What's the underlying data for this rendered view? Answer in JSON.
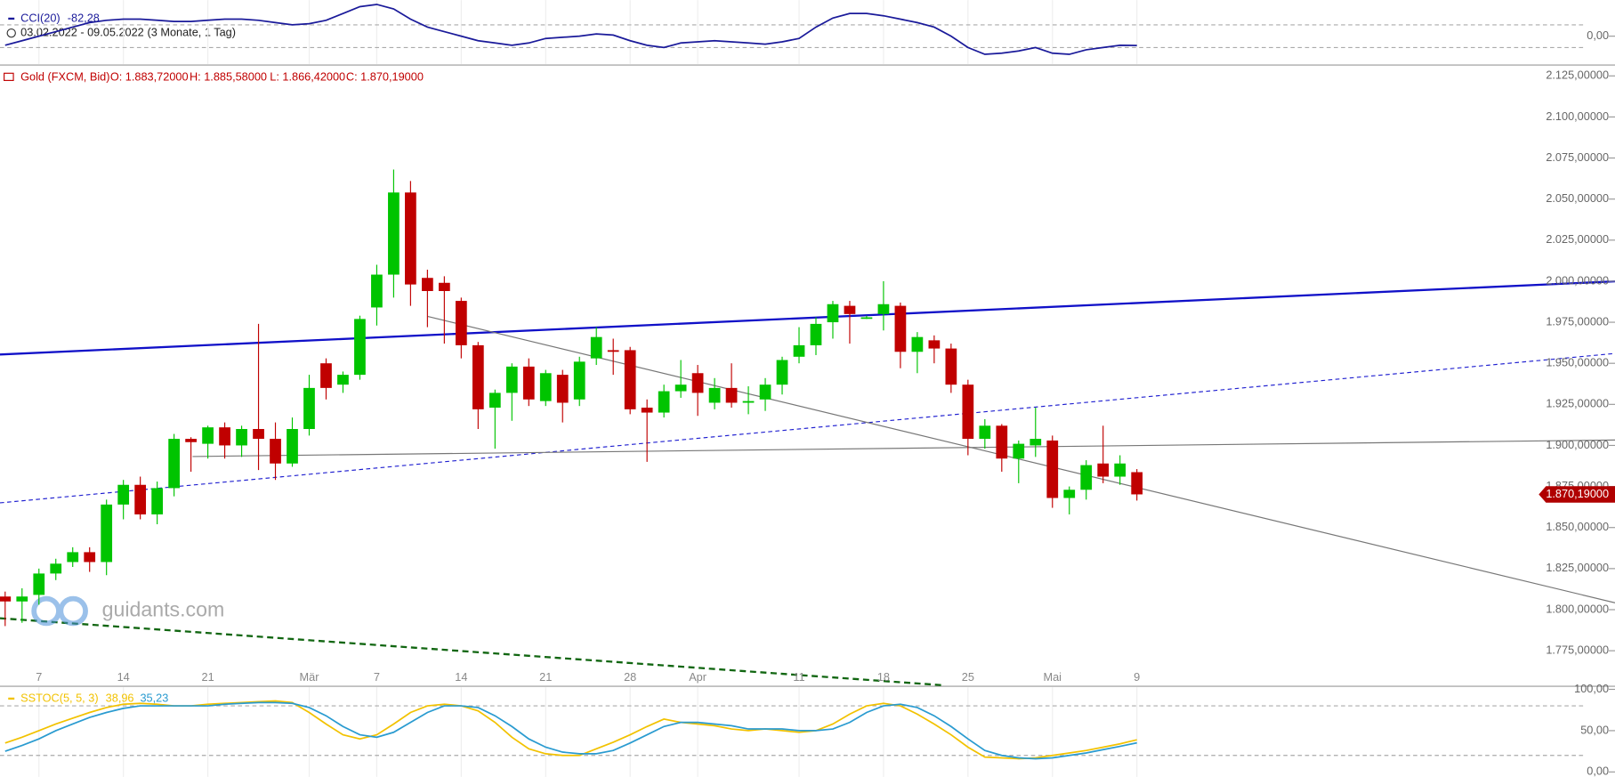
{
  "header": {
    "date_range": "03.02.2022 - 09.05.2022",
    "period": "(3 Monate, 1 Tag)",
    "watermark": "guidants.com"
  },
  "chart_data": [
    {
      "type": "line",
      "title": "CCI(20)",
      "last_label": "-82,28",
      "series": [
        {
          "color": "#1a1a9a",
          "values": [
            -80,
            -40,
            0,
            40,
            80,
            120,
            140,
            150,
            150,
            140,
            130,
            130,
            140,
            150,
            150,
            140,
            120,
            100,
            110,
            140,
            200,
            260,
            280,
            240,
            150,
            80,
            40,
            0,
            -40,
            -60,
            -80,
            -60,
            -20,
            -10,
            0,
            20,
            10,
            -40,
            -80,
            -100,
            -60,
            -50,
            -40,
            -50,
            -60,
            -70,
            -50,
            -20,
            80,
            160,
            200,
            200,
            180,
            150,
            120,
            80,
            0,
            -100,
            -160,
            -150,
            -130,
            -100,
            -150,
            -160,
            -120,
            -100,
            -80,
            -82.28
          ]
        }
      ],
      "ylim": [
        -245,
        318
      ],
      "yticks": [
        {
          "value": 0,
          "label": "0,00"
        }
      ],
      "levels": [
        100,
        -100
      ]
    },
    {
      "type": "candlestick",
      "title": "Gold (FXCM, Bid)",
      "ohlc_labels": [
        "O: 1.883,72000",
        "H: 1.885,58000",
        "L: 1.866,42000",
        "C: 1.870,19000"
      ],
      "last_close_label": "1.870,19000",
      "categories": [
        null,
        null,
        "7",
        null,
        null,
        null,
        null,
        "14",
        null,
        null,
        null,
        null,
        "21",
        null,
        null,
        null,
        null,
        null,
        "Mär",
        null,
        null,
        null,
        "7",
        null,
        null,
        null,
        null,
        "14",
        null,
        null,
        null,
        null,
        "21",
        null,
        null,
        null,
        null,
        "28",
        null,
        null,
        null,
        "Apr",
        null,
        null,
        null,
        null,
        null,
        "11",
        null,
        null,
        null,
        null,
        "18",
        null,
        null,
        null,
        null,
        "25",
        null,
        null,
        null,
        null,
        "Mai",
        null,
        null,
        null,
        null,
        "9"
      ],
      "open": [
        1808,
        1805,
        1809,
        1822,
        1829,
        1835,
        1829,
        1864,
        1876,
        1858,
        1874,
        1904,
        1901,
        1911,
        1900,
        1910,
        1904,
        1889,
        1910,
        1950,
        1937,
        1943,
        1984,
        2004,
        2054,
        2002,
        1999,
        1988,
        1961,
        1923,
        1932,
        1948,
        1927,
        1943,
        1928,
        1953,
        1958,
        1958,
        1923,
        1920,
        1933,
        1944,
        1926,
        1935,
        1926,
        1928,
        1937,
        1954,
        1961,
        1975,
        1985,
        1978,
        1980,
        1985,
        1957,
        1964,
        1959,
        1937,
        1904,
        1912,
        1892,
        1900,
        1903,
        1868,
        1873,
        1889,
        1881,
        1883.72
      ],
      "high": [
        1811,
        1813,
        1825,
        1831,
        1838,
        1838,
        1867,
        1879,
        1881,
        1878,
        1907,
        1905,
        1912,
        1914,
        1912,
        1974,
        1914,
        1917,
        1943,
        1953,
        1945,
        1979,
        2010,
        2068,
        2061,
        2007,
        2003,
        1990,
        1963,
        1934,
        1950,
        1953,
        1946,
        1946,
        1954,
        1972,
        1965,
        1960,
        1928,
        1937,
        1952,
        1949,
        1941,
        1950,
        1936,
        1941,
        1954,
        1972,
        1978,
        1988,
        1988,
        1979,
        2000,
        1987,
        1969,
        1967,
        1962,
        1940,
        1916,
        1913,
        1903,
        1923,
        1906,
        1875,
        1891,
        1912,
        1894,
        1885.58
      ],
      "low": [
        1790,
        1792,
        1803,
        1818,
        1826,
        1823,
        1821,
        1855,
        1855,
        1852,
        1869,
        1884,
        1892,
        1892,
        1893,
        1885,
        1879,
        1887,
        1906,
        1928,
        1932,
        1940,
        1973,
        1990,
        1985,
        1972,
        1962,
        1953,
        1910,
        1898,
        1915,
        1924,
        1924,
        1914,
        1924,
        1949,
        1943,
        1919,
        1890,
        1917,
        1929,
        1918,
        1922,
        1923,
        1919,
        1921,
        1931,
        1950,
        1955,
        1965,
        1962,
        1977,
        1970,
        1947,
        1944,
        1950,
        1932,
        1894,
        1898,
        1884,
        1877,
        1893,
        1862,
        1858,
        1867,
        1877,
        1876,
        1866.42
      ],
      "close": [
        1805,
        1808,
        1822,
        1828,
        1835,
        1829,
        1864,
        1876,
        1858,
        1874,
        1904,
        1902,
        1911,
        1900,
        1910,
        1904,
        1889,
        1910,
        1935,
        1935,
        1943,
        1977,
        2004,
        2054,
        1998,
        1994,
        1994,
        1961,
        1922,
        1932,
        1948,
        1928,
        1944,
        1926,
        1951,
        1966,
        1957,
        1922,
        1920,
        1933,
        1937,
        1932,
        1935,
        1926,
        1927,
        1937,
        1952,
        1961,
        1974,
        1986,
        1980,
        1978,
        1986,
        1957,
        1966,
        1959,
        1937,
        1904,
        1912,
        1892,
        1901,
        1904,
        1868,
        1873,
        1888,
        1881,
        1889,
        1870.19
      ],
      "colors": {
        "up": "#00c400",
        "down": "#c00000"
      },
      "ylim": [
        1754,
        2131
      ],
      "yticks": [
        {
          "value": 2125,
          "label": "2.125,00000"
        },
        {
          "value": 2100,
          "label": "2.100,00000"
        },
        {
          "value": 2075,
          "label": "2.075,00000"
        },
        {
          "value": 2050,
          "label": "2.050,00000"
        },
        {
          "value": 2025,
          "label": "2.025,00000"
        },
        {
          "value": 2000,
          "label": "2.000,00000"
        },
        {
          "value": 1975,
          "label": "1.975,00000"
        },
        {
          "value": 1950,
          "label": "1.950,00000"
        },
        {
          "value": 1925,
          "label": "1.925,00000"
        },
        {
          "value": 1900,
          "label": "1.900,00000"
        },
        {
          "value": 1875,
          "label": "1.875,00000"
        },
        {
          "value": 1850,
          "label": "1.850,00000"
        },
        {
          "value": 1825,
          "label": "1.825,00000"
        },
        {
          "value": 1800,
          "label": "1.800,00000"
        },
        {
          "value": 1775,
          "label": "1.775,00000"
        }
      ]
    },
    {
      "type": "line",
      "title": "SSTOC(5, 5, 3)",
      "series": [
        {
          "color": "#f2c200",
          "last_label": "38,96",
          "values": [
            35,
            42,
            50,
            58,
            65,
            72,
            78,
            82,
            83,
            82,
            80,
            80,
            82,
            83,
            84,
            85,
            86,
            84,
            72,
            58,
            45,
            40,
            45,
            58,
            72,
            80,
            82,
            80,
            74,
            60,
            42,
            28,
            22,
            20,
            20,
            28,
            36,
            45,
            55,
            64,
            60,
            58,
            56,
            52,
            50,
            52,
            50,
            48,
            50,
            58,
            70,
            80,
            83,
            80,
            70,
            58,
            45,
            30,
            18,
            17,
            16,
            17,
            20,
            23,
            26,
            30,
            34,
            38.96
          ]
        },
        {
          "color": "#2a9bd0",
          "last_label": "35,23",
          "values": [
            25,
            32,
            40,
            50,
            58,
            66,
            72,
            77,
            80,
            80,
            80,
            80,
            80,
            82,
            83,
            84,
            84,
            83,
            78,
            68,
            55,
            45,
            42,
            48,
            60,
            72,
            80,
            80,
            78,
            68,
            55,
            40,
            30,
            24,
            22,
            22,
            26,
            35,
            45,
            55,
            60,
            60,
            58,
            56,
            52,
            52,
            52,
            50,
            50,
            52,
            60,
            72,
            80,
            82,
            78,
            68,
            55,
            40,
            26,
            20,
            17,
            16,
            17,
            20,
            23,
            27,
            31,
            35.23
          ]
        }
      ],
      "ylim": [
        -6,
        102.5
      ],
      "yticks": [
        {
          "value": 100,
          "label": "100,00"
        },
        {
          "value": 50,
          "label": "50,00"
        },
        {
          "value": 0,
          "label": "0,00"
        }
      ],
      "levels": [
        80,
        20
      ]
    }
  ]
}
